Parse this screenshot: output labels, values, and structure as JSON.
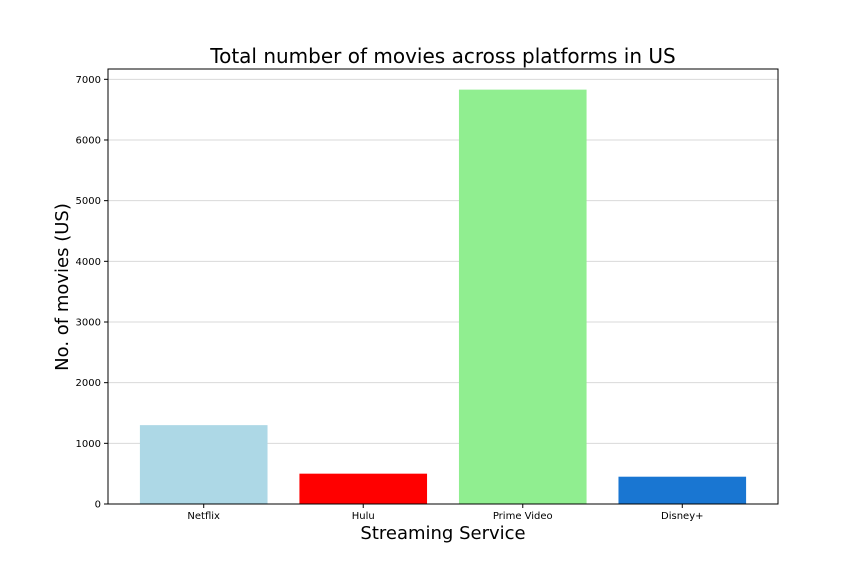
{
  "chart_data": {
    "type": "bar",
    "title": "Total number of movies across platforms in US",
    "xlabel": "Streaming Service",
    "ylabel": "No. of movies (US)",
    "categories": [
      "Netflix",
      "Hulu",
      "Prime Video",
      "Disney+"
    ],
    "values": [
      1300,
      500,
      6830,
      450
    ],
    "colors": [
      "#add8e6",
      "#ff0000",
      "#90ee90",
      "#1976d2"
    ],
    "ylim": [
      0,
      7170
    ],
    "yticks": [
      0,
      1000,
      2000,
      3000,
      4000,
      5000,
      6000,
      7000
    ],
    "grid": "horizontal"
  }
}
